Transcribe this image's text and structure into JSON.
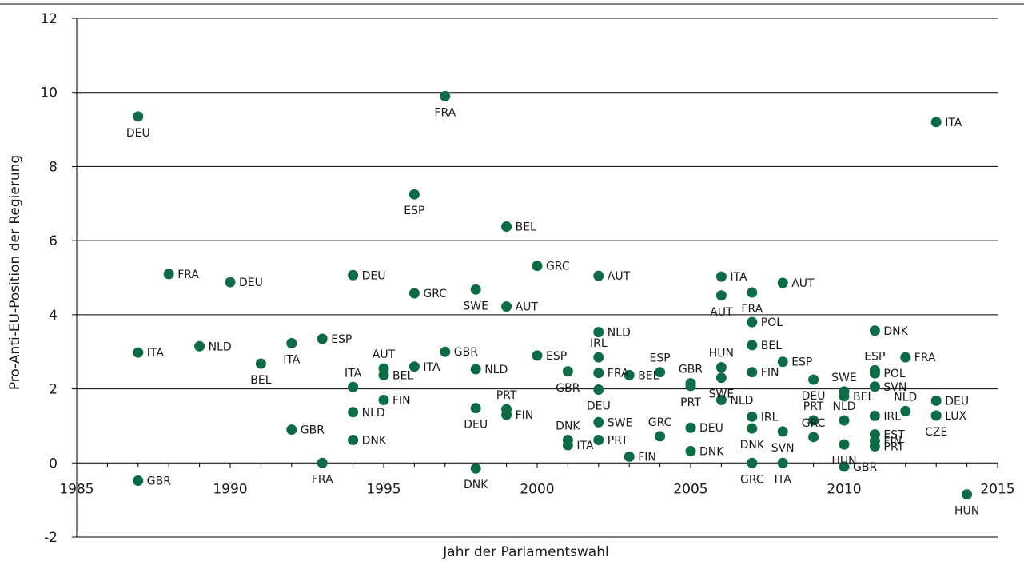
{
  "chart_data": {
    "type": "scatter",
    "xlabel": "Jahr der Parlamentswahl",
    "ylabel": "Pro-Anti-EU-Position der Regierung",
    "xlim": [
      1985,
      2015
    ],
    "ylim": [
      -2,
      12
    ],
    "xticks": [
      1985,
      1990,
      1995,
      2000,
      2005,
      2010,
      2015
    ],
    "yticks": [
      -2,
      0,
      2,
      4,
      6,
      8,
      10,
      12
    ],
    "grid": "horizontal",
    "marker_color": "#0d6b45",
    "points": [
      {
        "x": 1987,
        "y": 9.35,
        "label": "DEU",
        "pos": "below"
      },
      {
        "x": 1987,
        "y": 2.98,
        "label": "ITA",
        "pos": "right"
      },
      {
        "x": 1987,
        "y": -0.48,
        "label": "GBR",
        "pos": "right"
      },
      {
        "x": 1988,
        "y": 5.1,
        "label": "FRA",
        "pos": "right"
      },
      {
        "x": 1989,
        "y": 3.15,
        "label": "NLD",
        "pos": "right"
      },
      {
        "x": 1990,
        "y": 4.88,
        "label": "DEU",
        "pos": "right"
      },
      {
        "x": 1991,
        "y": 2.68,
        "label": "BEL",
        "pos": "below"
      },
      {
        "x": 1992,
        "y": 3.23,
        "label": "ITA",
        "pos": "below"
      },
      {
        "x": 1992,
        "y": 0.9,
        "label": "GBR",
        "pos": "right"
      },
      {
        "x": 1993,
        "y": 3.35,
        "label": "ESP",
        "pos": "right"
      },
      {
        "x": 1993,
        "y": 0.0,
        "label": "FRA",
        "pos": "below"
      },
      {
        "x": 1994,
        "y": 5.07,
        "label": "DEU",
        "pos": "right"
      },
      {
        "x": 1994,
        "y": 2.05,
        "label": "ITA",
        "pos": "above"
      },
      {
        "x": 1994,
        "y": 1.37,
        "label": "NLD",
        "pos": "right"
      },
      {
        "x": 1994,
        "y": 0.62,
        "label": "DNK",
        "pos": "right"
      },
      {
        "x": 1995,
        "y": 2.55,
        "label": "AUT",
        "pos": "above"
      },
      {
        "x": 1995,
        "y": 2.37,
        "label": "BEL",
        "pos": "right"
      },
      {
        "x": 1995,
        "y": 1.7,
        "label": "FIN",
        "pos": "right"
      },
      {
        "x": 1996,
        "y": 7.25,
        "label": "ESP",
        "pos": "below"
      },
      {
        "x": 1996,
        "y": 4.58,
        "label": "GRC",
        "pos": "right"
      },
      {
        "x": 1996,
        "y": 2.6,
        "label": "ITA",
        "pos": "right"
      },
      {
        "x": 1997,
        "y": 9.9,
        "label": "FRA",
        "pos": "below"
      },
      {
        "x": 1997,
        "y": 3.0,
        "label": "GBR",
        "pos": "right"
      },
      {
        "x": 1998,
        "y": 4.68,
        "label": "SWE",
        "pos": "below"
      },
      {
        "x": 1998,
        "y": 2.53,
        "label": "NLD",
        "pos": "right"
      },
      {
        "x": 1998,
        "y": 1.48,
        "label": "DEU",
        "pos": "below"
      },
      {
        "x": 1998,
        "y": -0.15,
        "label": "DNK",
        "pos": "below"
      },
      {
        "x": 1999,
        "y": 6.38,
        "label": "BEL",
        "pos": "right"
      },
      {
        "x": 1999,
        "y": 4.22,
        "label": "AUT",
        "pos": "right"
      },
      {
        "x": 1999,
        "y": 1.45,
        "label": "PRT",
        "pos": "above"
      },
      {
        "x": 1999,
        "y": 1.3,
        "label": "FIN",
        "pos": "right"
      },
      {
        "x": 2000,
        "y": 5.32,
        "label": "GRC",
        "pos": "right"
      },
      {
        "x": 2000,
        "y": 2.9,
        "label": "ESP",
        "pos": "right"
      },
      {
        "x": 2001,
        "y": 2.47,
        "label": "GBR",
        "pos": "below"
      },
      {
        "x": 2001,
        "y": 0.62,
        "label": "DNK",
        "pos": "above"
      },
      {
        "x": 2001,
        "y": 0.48,
        "label": "ITA",
        "pos": "right"
      },
      {
        "x": 2002,
        "y": 5.05,
        "label": "AUT",
        "pos": "right"
      },
      {
        "x": 2002,
        "y": 3.53,
        "label": "NLD",
        "pos": "right"
      },
      {
        "x": 2002,
        "y": 2.85,
        "label": "IRL",
        "pos": "above"
      },
      {
        "x": 2002,
        "y": 2.43,
        "label": "FRA",
        "pos": "right"
      },
      {
        "x": 2002,
        "y": 1.98,
        "label": "DEU",
        "pos": "below"
      },
      {
        "x": 2002,
        "y": 1.1,
        "label": "SWE",
        "pos": "right"
      },
      {
        "x": 2002,
        "y": 0.62,
        "label": "PRT",
        "pos": "right"
      },
      {
        "x": 2003,
        "y": 2.37,
        "label": "BEL",
        "pos": "right"
      },
      {
        "x": 2003,
        "y": 0.17,
        "label": "FIN",
        "pos": "right"
      },
      {
        "x": 2004,
        "y": 2.45,
        "label": "ESP",
        "pos": "above"
      },
      {
        "x": 2004,
        "y": 0.72,
        "label": "GRC",
        "pos": "above"
      },
      {
        "x": 2005,
        "y": 2.15,
        "label": "GBR",
        "pos": "above"
      },
      {
        "x": 2005,
        "y": 2.08,
        "label": "PRT",
        "pos": "below"
      },
      {
        "x": 2005,
        "y": 0.95,
        "label": "DEU",
        "pos": "right"
      },
      {
        "x": 2005,
        "y": 0.32,
        "label": "DNK",
        "pos": "right"
      },
      {
        "x": 2006,
        "y": 5.03,
        "label": "ITA",
        "pos": "right"
      },
      {
        "x": 2006,
        "y": 4.52,
        "label": "AUT",
        "pos": "below"
      },
      {
        "x": 2006,
        "y": 2.58,
        "label": "HUN",
        "pos": "above"
      },
      {
        "x": 2006,
        "y": 2.3,
        "label": "SWE",
        "pos": "below"
      },
      {
        "x": 2006,
        "y": 1.7,
        "label": "NLD",
        "pos": "right"
      },
      {
        "x": 2007,
        "y": 4.6,
        "label": "FRA",
        "pos": "below"
      },
      {
        "x": 2007,
        "y": 3.8,
        "label": "POL",
        "pos": "right"
      },
      {
        "x": 2007,
        "y": 3.18,
        "label": "BEL",
        "pos": "right"
      },
      {
        "x": 2007,
        "y": 2.45,
        "label": "FIN",
        "pos": "right"
      },
      {
        "x": 2007,
        "y": 1.25,
        "label": "IRL",
        "pos": "right"
      },
      {
        "x": 2007,
        "y": 0.93,
        "label": "DNK",
        "pos": "below"
      },
      {
        "x": 2007,
        "y": 0.0,
        "label": "GRC",
        "pos": "below"
      },
      {
        "x": 2008,
        "y": 4.86,
        "label": "AUT",
        "pos": "right"
      },
      {
        "x": 2008,
        "y": 2.73,
        "label": "ESP",
        "pos": "right"
      },
      {
        "x": 2008,
        "y": 0.85,
        "label": "SVN",
        "pos": "below"
      },
      {
        "x": 2008,
        "y": 0.0,
        "label": "ITA",
        "pos": "below"
      },
      {
        "x": 2009,
        "y": 2.25,
        "label": "DEU",
        "pos": "below"
      },
      {
        "x": 2009,
        "y": 1.15,
        "label": "PRT",
        "pos": "above"
      },
      {
        "x": 2009,
        "y": 0.7,
        "label": "GRC",
        "pos": "above"
      },
      {
        "x": 2010,
        "y": 1.93,
        "label": "SWE",
        "pos": "above"
      },
      {
        "x": 2010,
        "y": 1.8,
        "label": "BEL",
        "pos": "right"
      },
      {
        "x": 2010,
        "y": 1.15,
        "label": "NLD",
        "pos": "above"
      },
      {
        "x": 2010,
        "y": 0.5,
        "label": "HUN",
        "pos": "below"
      },
      {
        "x": 2010,
        "y": -0.1,
        "label": "GBR",
        "pos": "right"
      },
      {
        "x": 2011,
        "y": 3.57,
        "label": "DNK",
        "pos": "right"
      },
      {
        "x": 2011,
        "y": 2.5,
        "label": "ESP",
        "pos": "above"
      },
      {
        "x": 2011,
        "y": 2.42,
        "label": "POL",
        "pos": "right"
      },
      {
        "x": 2011,
        "y": 2.06,
        "label": "SVN",
        "pos": "right"
      },
      {
        "x": 2011,
        "y": 1.27,
        "label": "IRL",
        "pos": "right"
      },
      {
        "x": 2011,
        "y": 0.77,
        "label": "EST",
        "pos": "right"
      },
      {
        "x": 2011,
        "y": 0.6,
        "label": "FIN",
        "pos": "right"
      },
      {
        "x": 2011,
        "y": 0.45,
        "label": "PRT",
        "pos": "right"
      },
      {
        "x": 2012,
        "y": 2.85,
        "label": "FRA",
        "pos": "right"
      },
      {
        "x": 2012,
        "y": 1.4,
        "label": "NLD",
        "pos": "above"
      },
      {
        "x": 2013,
        "y": 9.2,
        "label": "ITA",
        "pos": "right"
      },
      {
        "x": 2013,
        "y": 1.68,
        "label": "DEU",
        "pos": "right"
      },
      {
        "x": 2013,
        "y": 1.28,
        "label": "LUX",
        "pos": "right"
      },
      {
        "x": 2013,
        "y": 1.28,
        "label": "CZE",
        "pos": "below"
      },
      {
        "x": 2014,
        "y": -0.85,
        "label": "HUN",
        "pos": "below"
      }
    ]
  }
}
